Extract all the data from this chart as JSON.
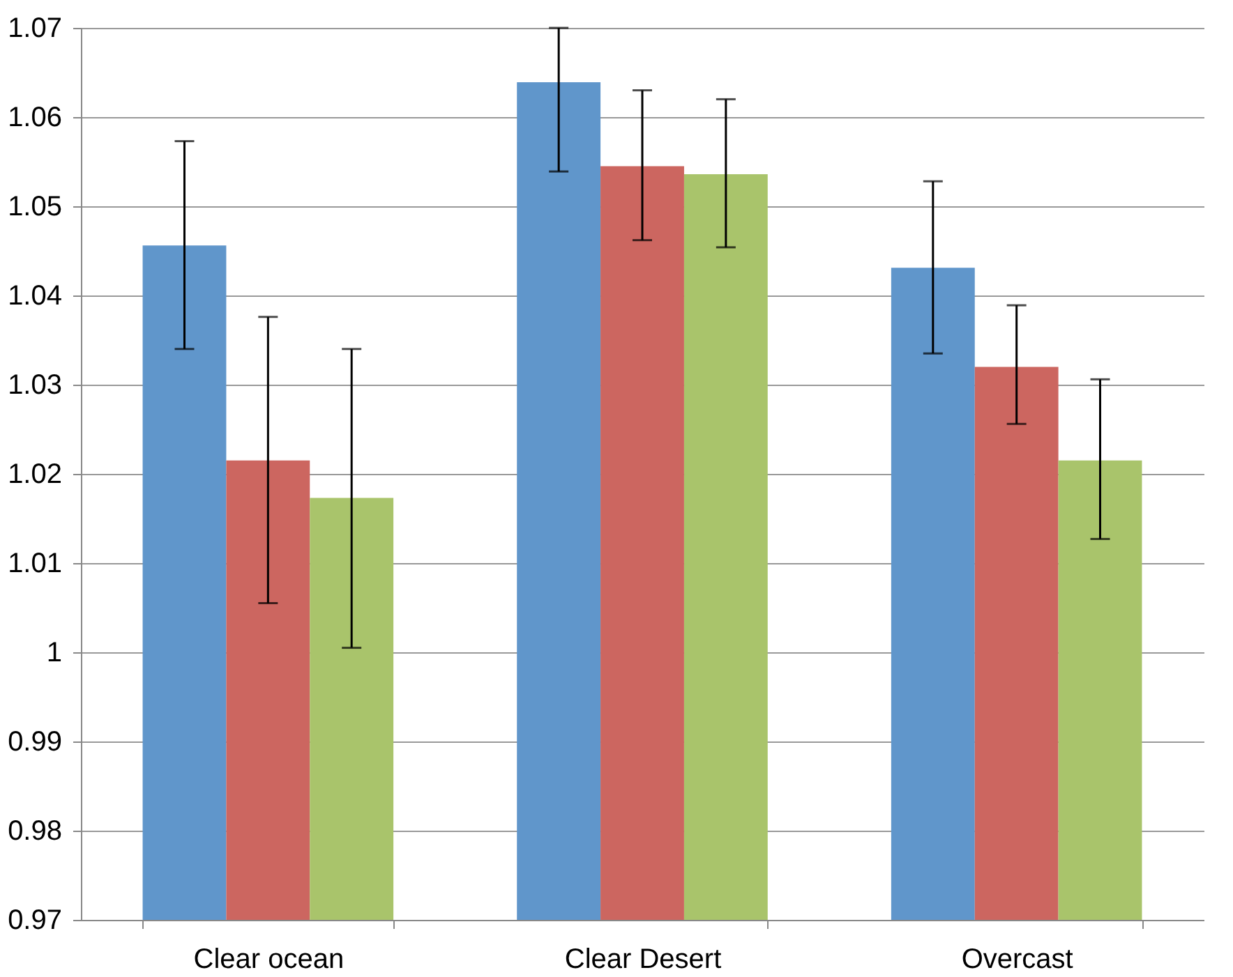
{
  "chart_data": {
    "type": "bar",
    "categories": [
      "Clear ocean",
      "Clear Desert",
      "Overcast"
    ],
    "series": [
      {
        "color": "#6096cb",
        "values": [
          1.0456,
          1.0639,
          1.0431
        ],
        "errors": [
          [
            1.034,
            1.0573
          ],
          [
            1.0539,
            1.07
          ],
          [
            1.0335,
            1.0528
          ]
        ]
      },
      {
        "color": "#cc6660",
        "values": [
          1.0215,
          1.0545,
          1.032
        ],
        "errors": [
          [
            1.0055,
            1.0376
          ],
          [
            1.0462,
            1.063
          ],
          [
            1.0256,
            1.0389
          ]
        ]
      },
      {
        "color": "#a9c46b",
        "values": [
          1.0173,
          1.0536,
          1.0215
        ],
        "errors": [
          [
            1.0005,
            1.034
          ],
          [
            1.0454,
            1.062
          ],
          [
            1.0127,
            1.0306
          ]
        ]
      }
    ],
    "ylim": [
      0.97,
      1.07
    ],
    "yticks": [
      0.97,
      0.98,
      0.99,
      1,
      1.01,
      1.02,
      1.03,
      1.04,
      1.05,
      1.06,
      1.07
    ],
    "grid": "y",
    "legend": false
  }
}
